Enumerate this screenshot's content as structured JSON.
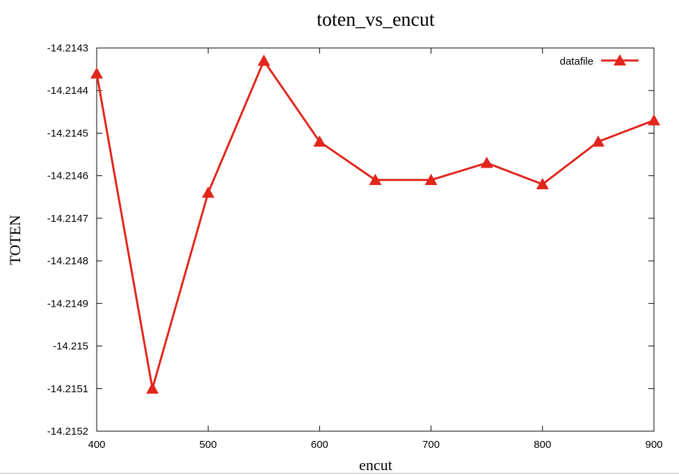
{
  "chart_data": {
    "type": "line",
    "title": "toten_vs_encut",
    "xlabel": "encut",
    "ylabel": "TOTEN",
    "xlim": [
      400,
      900
    ],
    "ylim": [
      -14.2152,
      -14.2143
    ],
    "x_ticks": [
      400,
      500,
      600,
      700,
      800,
      900
    ],
    "x_tick_labels": [
      "400",
      "500",
      "600",
      "700",
      "800",
      "900"
    ],
    "y_ticks": [
      -14.2152,
      -14.2151,
      -14.215,
      -14.2149,
      -14.2148,
      -14.2147,
      -14.2146,
      -14.2145,
      -14.2144,
      -14.2143
    ],
    "y_tick_labels": [
      "-14.2152",
      "-14.2151",
      "-14.215",
      "-14.2149",
      "-14.2148",
      "-14.2147",
      "-14.2146",
      "-14.2145",
      "-14.2144",
      "-14.2143"
    ],
    "grid": false,
    "legend_position": "top-right",
    "series": [
      {
        "name": "datafile",
        "color": "#e1261c",
        "marker": "triangle",
        "x": [
          400,
          450,
          500,
          550,
          600,
          650,
          700,
          750,
          800,
          850,
          900
        ],
        "y": [
          -14.21436,
          -14.2151,
          -14.21464,
          -14.21433,
          -14.21452,
          -14.21461,
          -14.21461,
          -14.21457,
          -14.21462,
          -14.21452,
          -14.21447
        ]
      }
    ]
  }
}
